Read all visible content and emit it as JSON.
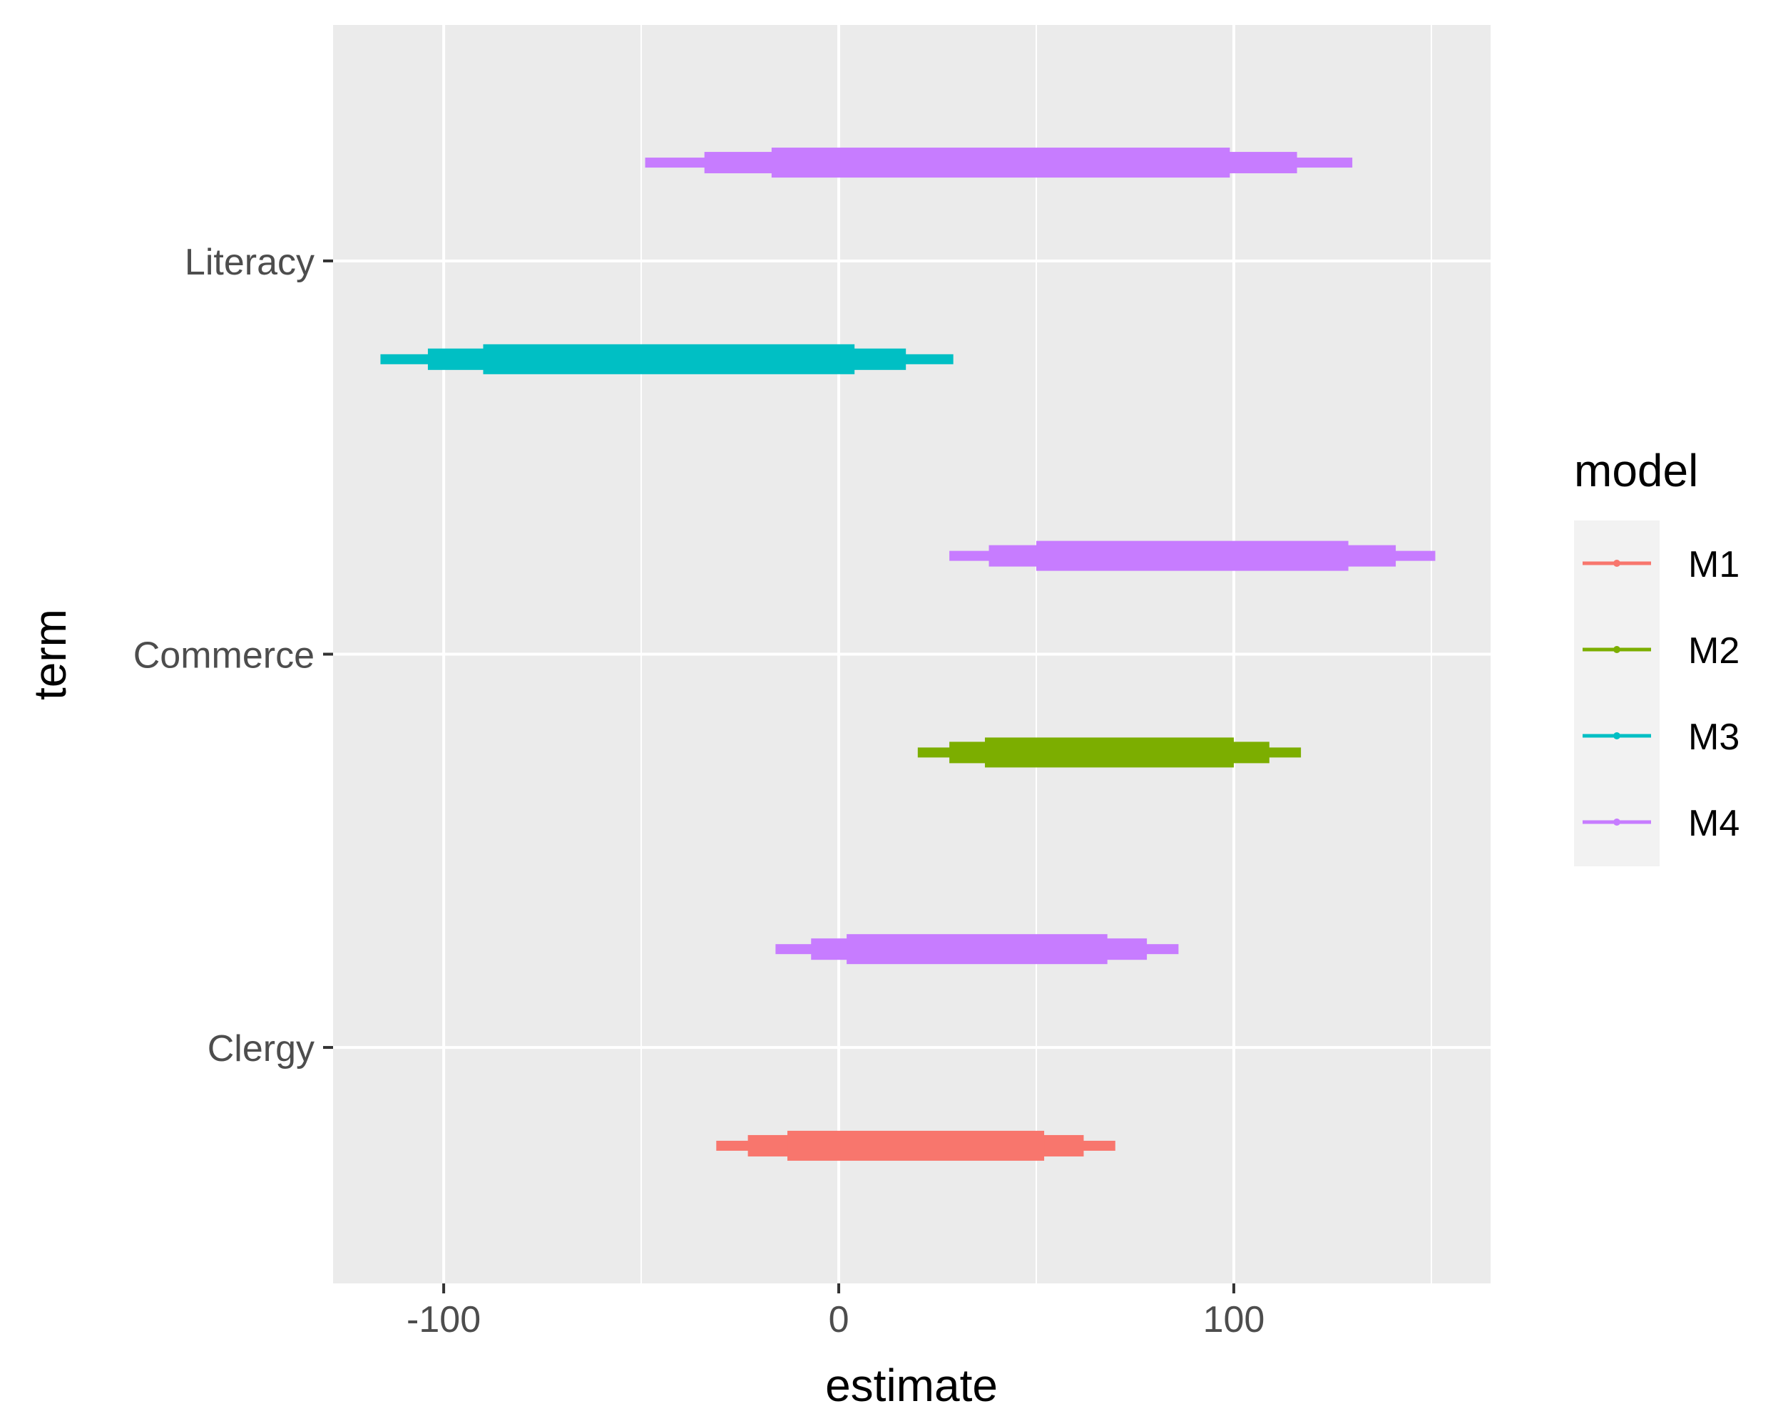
{
  "chart_data": {
    "type": "coefficient-interval",
    "xlabel": "estimate",
    "ylabel": "term",
    "xlim": [
      -128,
      165
    ],
    "x_ticks": [
      {
        "value": -100,
        "label": "-100"
      },
      {
        "value": 0,
        "label": "0"
      },
      {
        "value": 100,
        "label": "100"
      }
    ],
    "x_minor_ticks": [
      -50,
      50,
      150
    ],
    "terms": [
      "Clergy",
      "Commerce",
      "Literacy"
    ],
    "legend": {
      "title": "model",
      "position": "right",
      "items": [
        {
          "label": "M1",
          "color": "#F8766D"
        },
        {
          "label": "M2",
          "color": "#7CAE00"
        },
        {
          "label": "M3",
          "color": "#00BFC4"
        },
        {
          "label": "M4",
          "color": "#C77CFF"
        }
      ]
    },
    "series": [
      {
        "model": "M1",
        "term": "Clergy",
        "offset": -0.25,
        "color": "#F8766D",
        "outer": [
          -31,
          70
        ],
        "mid": [
          -23,
          62
        ],
        "inner": [
          -13,
          52
        ]
      },
      {
        "model": "M4",
        "term": "Clergy",
        "offset": 0.25,
        "color": "#C77CFF",
        "outer": [
          -16,
          86
        ],
        "mid": [
          -7,
          78
        ],
        "inner": [
          2,
          68
        ]
      },
      {
        "model": "M2",
        "term": "Commerce",
        "offset": -0.25,
        "color": "#7CAE00",
        "outer": [
          20,
          117
        ],
        "mid": [
          28,
          109
        ],
        "inner": [
          37,
          100
        ]
      },
      {
        "model": "M4",
        "term": "Commerce",
        "offset": 0.25,
        "color": "#C77CFF",
        "outer": [
          28,
          151
        ],
        "mid": [
          38,
          141
        ],
        "inner": [
          50,
          129
        ]
      },
      {
        "model": "M3",
        "term": "Literacy",
        "offset": -0.25,
        "color": "#00BFC4",
        "outer": [
          -116,
          29
        ],
        "mid": [
          -104,
          17
        ],
        "inner": [
          -90,
          4
        ]
      },
      {
        "model": "M4",
        "term": "Literacy",
        "offset": 0.25,
        "color": "#C77CFF",
        "outer": [
          -49,
          130
        ],
        "mid": [
          -34,
          116
        ],
        "inner": [
          -17,
          99
        ]
      }
    ]
  }
}
